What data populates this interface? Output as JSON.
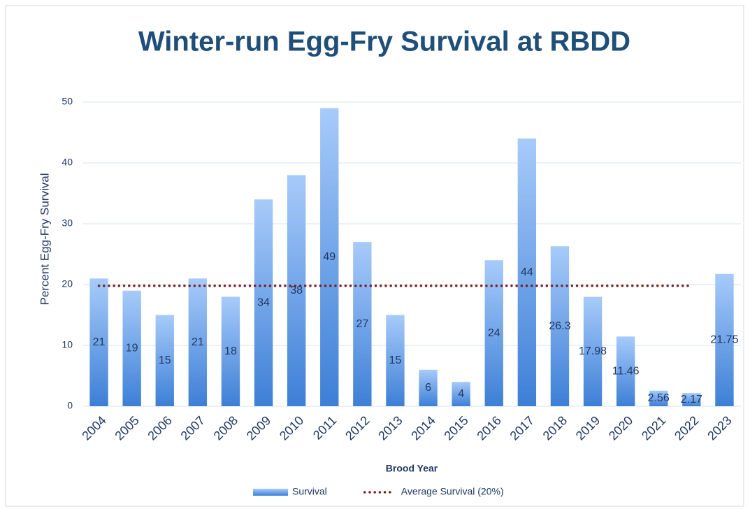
{
  "chart_data": {
    "type": "bar",
    "title": "Winter-run Egg-Fry Survival at RBDD",
    "x_label": "Brood Year",
    "y_label": "Percent Egg-Fry Survival",
    "categories": [
      "2004",
      "2005",
      "2006",
      "2007",
      "2008",
      "2009",
      "2010",
      "2011",
      "2012",
      "2013",
      "2014",
      "2015",
      "2016",
      "2017",
      "2018",
      "2019",
      "2020",
      "2021",
      "2022",
      "2023"
    ],
    "series": [
      {
        "name": "Survival",
        "type": "bar",
        "color": "#3d7fd6",
        "values": [
          21,
          19,
          15,
          21,
          18,
          34,
          38,
          49,
          27,
          15,
          6,
          4,
          24,
          44,
          26.3,
          17.98,
          11.46,
          2.56,
          2.17,
          21.75
        ]
      },
      {
        "name": "Average Survival (20%)",
        "type": "line",
        "color": "#7b1c1c",
        "values": [
          19.8,
          19.8,
          19.8,
          19.8,
          19.8,
          19.8,
          19.8,
          19.8,
          19.8,
          19.8,
          19.8,
          19.8,
          19.8,
          19.8,
          19.8,
          19.8,
          19.8,
          19.8,
          19.8,
          null
        ]
      }
    ],
    "ylim": [
      0,
      50
    ],
    "yticks": [
      0,
      10,
      20,
      30,
      40,
      50
    ],
    "grid": true,
    "legend": "bottom"
  }
}
